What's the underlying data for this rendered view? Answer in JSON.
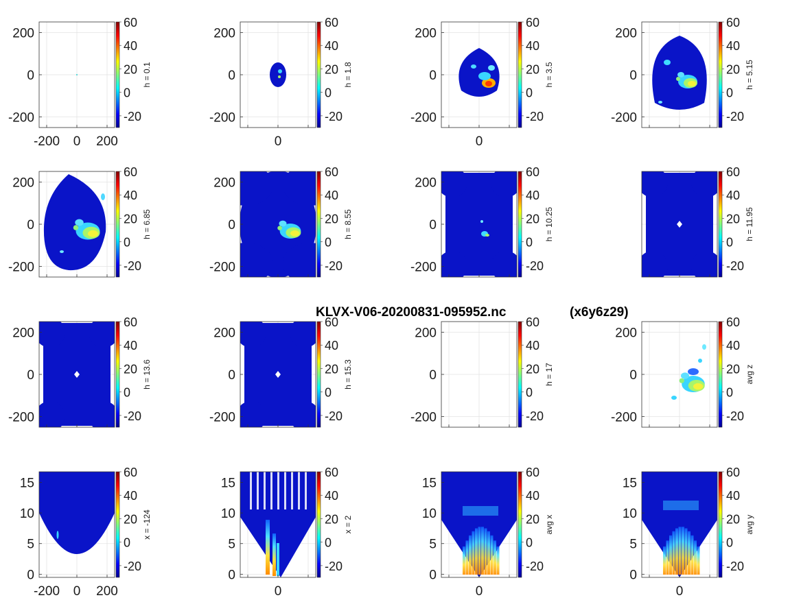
{
  "chart_data": {
    "type": "heatmap",
    "title": "KLVX-V06-20200831-095952.nc",
    "subtitle": "(x6y6z29)",
    "colormap": "jet",
    "clim": [
      -30,
      60
    ],
    "colorbar_ticks": [
      "60",
      "40",
      "20",
      "0",
      "-20"
    ],
    "panels": [
      {
        "label": "h = 0.1",
        "kind": "plan",
        "yticks": [
          "200",
          "0",
          "-200"
        ],
        "xticks": [
          "-200",
          "0",
          "200"
        ],
        "echo": "none"
      },
      {
        "label": "h = 1.8",
        "kind": "plan",
        "yticks": [
          "200",
          "0",
          "-200"
        ],
        "xticks": [
          "0"
        ],
        "echo": "small-disc"
      },
      {
        "label": "h = 3.5",
        "kind": "plan",
        "yticks": [
          "200",
          "0",
          "-200"
        ],
        "xticks": [
          "0"
        ],
        "echo": "medium-disc"
      },
      {
        "label": "h = 5.15",
        "kind": "plan",
        "yticks": [
          "200",
          "0",
          "-200"
        ],
        "xticks": [],
        "echo": "large-disc"
      },
      {
        "label": "h = 6.85",
        "kind": "plan",
        "yticks": [
          "200",
          "0",
          "-200"
        ],
        "xticks": [],
        "echo": "full-disc"
      },
      {
        "label": "h = 8.55",
        "kind": "plan",
        "yticks": [
          "200",
          "0",
          "-200"
        ],
        "xticks": [],
        "echo": "overlap-discs"
      },
      {
        "label": "h = 10.25",
        "kind": "plan",
        "yticks": [
          "200",
          "0",
          "-200"
        ],
        "xticks": [],
        "echo": "multi-radar"
      },
      {
        "label": "h = 11.95",
        "kind": "plan",
        "yticks": [],
        "xticks": [],
        "echo": "multi-radar-hole"
      },
      {
        "label": "h = 13.6",
        "kind": "plan",
        "yticks": [
          "200",
          "0",
          "-200"
        ],
        "xticks": [],
        "echo": "multi-radar-hole"
      },
      {
        "label": "h = 15.3",
        "kind": "plan",
        "yticks": [
          "200",
          "0",
          "-200"
        ],
        "xticks": [],
        "echo": "multi-radar-hole"
      },
      {
        "label": "h = 17",
        "kind": "plan",
        "yticks": [
          "200",
          "0",
          "-200"
        ],
        "xticks": [],
        "echo": "none"
      },
      {
        "label": "avg z",
        "kind": "plan",
        "yticks": [
          "200",
          "0",
          "-200"
        ],
        "xticks": [],
        "echo": "avg-z"
      },
      {
        "label": "x = -124",
        "kind": "vert",
        "yticks": [
          "15",
          "10",
          "5",
          "0"
        ],
        "xticks": [
          "-200",
          "0",
          "200"
        ],
        "echo": "x-124"
      },
      {
        "label": "x = 2",
        "kind": "vert",
        "yticks": [
          "15",
          "10",
          "5",
          "0"
        ],
        "xticks": [
          "0"
        ],
        "echo": "x2"
      },
      {
        "label": "avg x",
        "kind": "vert",
        "yticks": [
          "15",
          "10",
          "5",
          "0"
        ],
        "xticks": [
          "0"
        ],
        "echo": "avg-x"
      },
      {
        "label": "avg y",
        "kind": "vert",
        "yticks": [
          "15",
          "10",
          "5",
          "0"
        ],
        "xticks": [
          "0"
        ],
        "echo": "avg-y"
      }
    ]
  }
}
